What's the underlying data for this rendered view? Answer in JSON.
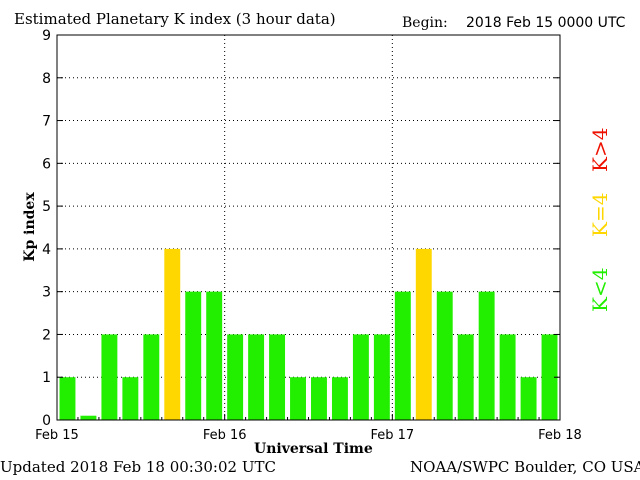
{
  "header": {
    "title": "Estimated Planetary K index (3 hour data)",
    "begin_label": "Begin:",
    "begin_value": "2018 Feb 15 0000 UTC"
  },
  "footer": {
    "updated": "Updated 2018 Feb 18 00:30:02 UTC",
    "source": "NOAA/SWPC Boulder, CO USA"
  },
  "legend": {
    "above": "K>4",
    "equal": "K=4",
    "below": "K<4"
  },
  "colors": {
    "below": "#22ee00",
    "equal": "#ffd700",
    "above": "#ee1100",
    "grid": "#000000",
    "axis": "#000000"
  },
  "chart_data": {
    "type": "bar",
    "title": "Estimated Planetary K index (3 hour data)",
    "xlabel": "Universal Time",
    "ylabel": "Kp index",
    "ylim": [
      0,
      9
    ],
    "yticks": [
      "0",
      "1",
      "2",
      "3",
      "4",
      "5",
      "6",
      "7",
      "8",
      "9"
    ],
    "xticks": [
      "Feb 15",
      "Feb 16",
      "Feb 17",
      "Feb 18"
    ],
    "grid": true,
    "values": [
      1,
      0.1,
      2,
      1,
      2,
      4,
      3,
      3,
      2,
      2,
      2,
      1,
      1,
      1,
      2,
      2,
      3,
      4,
      3,
      2,
      3,
      2,
      1,
      2
    ]
  }
}
